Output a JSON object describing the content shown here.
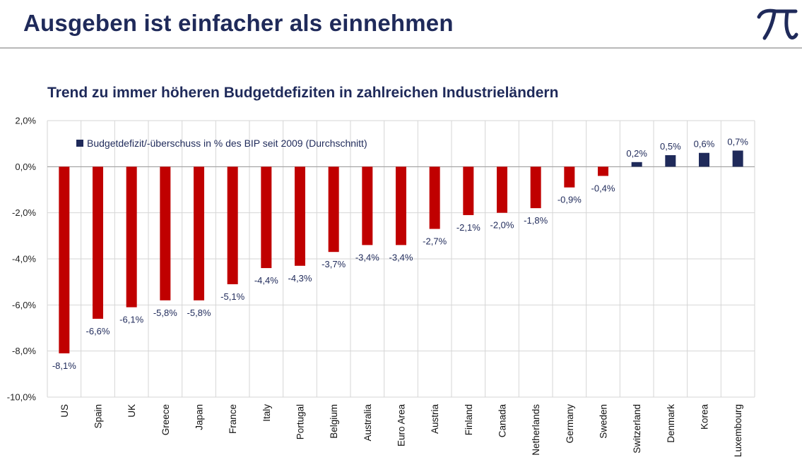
{
  "header": {
    "title": "Ausgeben ist einfacher als einnehmen"
  },
  "colors": {
    "negative": "#c00000",
    "positive": "#1f2a5a",
    "grid": "#d6d6d6",
    "text": "#1f2a5a"
  },
  "chart_data": {
    "type": "bar",
    "title": "Trend zu immer höheren Budgetdefiziten in zahlreichen Industrieländern",
    "xlabel": "",
    "ylabel": "",
    "ylim": [
      -10,
      2
    ],
    "yticks": [
      "2,0%",
      "0,0%",
      "-2,0%",
      "-4,0%",
      "-6,0%",
      "-8,0%",
      "-10,0%"
    ],
    "grid": true,
    "legend_position": "top-left",
    "categories": [
      "US",
      "Spain",
      "UK",
      "Greece",
      "Japan",
      "France",
      "Italy",
      "Portugal",
      "Belgium",
      "Australia",
      "Euro Area",
      "Austria",
      "Finland",
      "Canada",
      "Netherlands",
      "Germany",
      "Sweden",
      "Switzerland",
      "Denmark",
      "Korea",
      "Luxembourg"
    ],
    "series": [
      {
        "name": "Budgetdefizit/-überschuss in % des BIP seit 2009 (Durchschnitt)",
        "values": [
          -8.1,
          -6.6,
          -6.1,
          -5.8,
          -5.8,
          -5.1,
          -4.4,
          -4.3,
          -3.7,
          -3.4,
          -3.4,
          -2.7,
          -2.1,
          -2.0,
          -1.8,
          -0.9,
          -0.4,
          0.2,
          0.5,
          0.6,
          0.7
        ],
        "labels": [
          "-8,1%",
          "-6,6%",
          "-6,1%",
          "-5,8%",
          "-5,8%",
          "-5,1%",
          "-4,4%",
          "-4,3%",
          "-3,7%",
          "-3,4%",
          "-3,4%",
          "-2,7%",
          "-2,1%",
          "-2,0%",
          "-1,8%",
          "-0,9%",
          "-0,4%",
          "0,2%",
          "0,5%",
          "0,6%",
          "0,7%"
        ]
      }
    ]
  }
}
